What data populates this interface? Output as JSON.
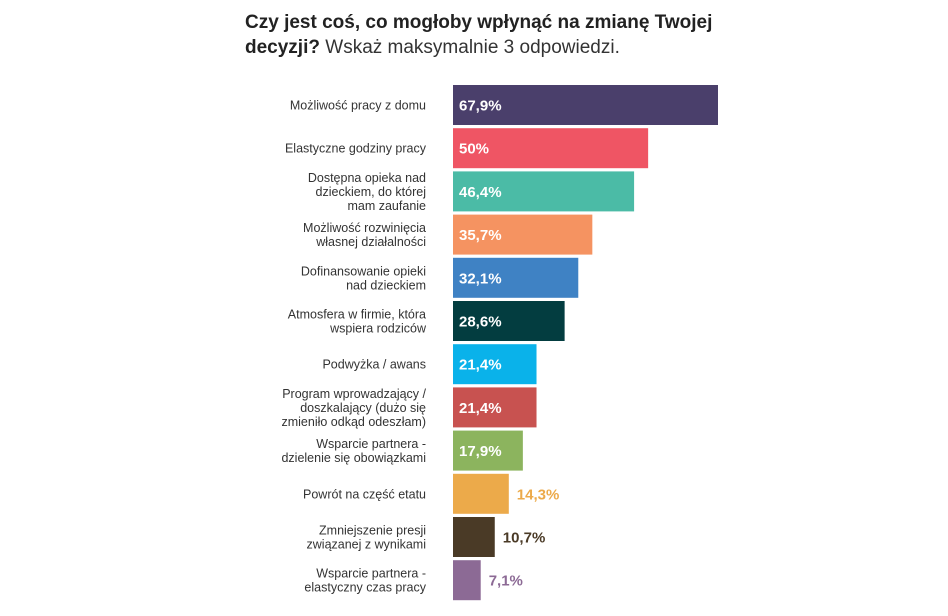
{
  "title_bold": "Czy jest coś, co mogłoby wpłynąć na zmianę Twojej decyzji?",
  "title_rest": " Wskaż maksymalnie 3 odpowiedzi.",
  "chart_data": {
    "type": "bar",
    "orientation": "horizontal",
    "title": "Czy jest coś, co mogłoby wpłynąć na zmianę Twojej decyzji? Wskaż maksymalnie 3 odpowiedzi.",
    "xlim": [
      0,
      67.9
    ],
    "grid": false,
    "legend": "none",
    "categories": [
      "Możliwość pracy z domu",
      "Elastyczne godziny pracy",
      "Dostępna opieka nad dzieckiem, do której mam zaufanie",
      "Możliwość rozwinięcia własnej działalności",
      "Dofinansowanie opieki nad dzieckiem",
      "Atmosfera w firmie, która wspiera rodziców",
      "Podwyżka / awans",
      "Program wprowadzający / doszkalający (dużo się zmieniło odkąd odeszłam)",
      "Wsparcie partnera - dzielenie się obowiązkami",
      "Powrót na część etatu",
      "Zmniejszenie presji związanej z wynikami",
      "Wsparcie partnera - elastyczny czas pracy"
    ],
    "category_lines": [
      [
        "Możliwość pracy z domu"
      ],
      [
        "Elastyczne godziny pracy"
      ],
      [
        "Dostępna opieka nad",
        "dzieckiem, do której",
        "mam zaufanie"
      ],
      [
        "Możliwość rozwinięcia",
        "własnej działalności"
      ],
      [
        "Dofinansowanie opieki",
        "nad dzieckiem"
      ],
      [
        "Atmosfera w firmie, która",
        "wspiera rodziców"
      ],
      [
        "Podwyżka / awans"
      ],
      [
        "Program wprowadzający /",
        "doszkalający (dużo się",
        "zmieniło odkąd odeszłam)"
      ],
      [
        "Wsparcie partnera -",
        "dzielenie się obowiązkami"
      ],
      [
        "Powrót na część etatu"
      ],
      [
        "Zmniejszenie presji",
        "związanej z wynikami"
      ],
      [
        "Wsparcie partnera -",
        "elastyczny czas pracy"
      ]
    ],
    "values": [
      67.9,
      50,
      46.4,
      35.7,
      32.1,
      28.6,
      21.4,
      21.4,
      17.9,
      14.3,
      10.7,
      7.1
    ],
    "value_labels": [
      "67,9%",
      "50%",
      "46,4%",
      "35,7%",
      "32,1%",
      "28,6%",
      "21,4%",
      "21,4%",
      "17,9%",
      "14,3%",
      "10,7%",
      "7,1%"
    ],
    "colors": [
      "#4a3f6b",
      "#ef5564",
      "#4bbba6",
      "#f59361",
      "#3f82c4",
      "#033d40",
      "#0ab2ea",
      "#c85250",
      "#8cb45e",
      "#ecaa4a",
      "#4a3a26",
      "#8c6a95"
    ]
  }
}
